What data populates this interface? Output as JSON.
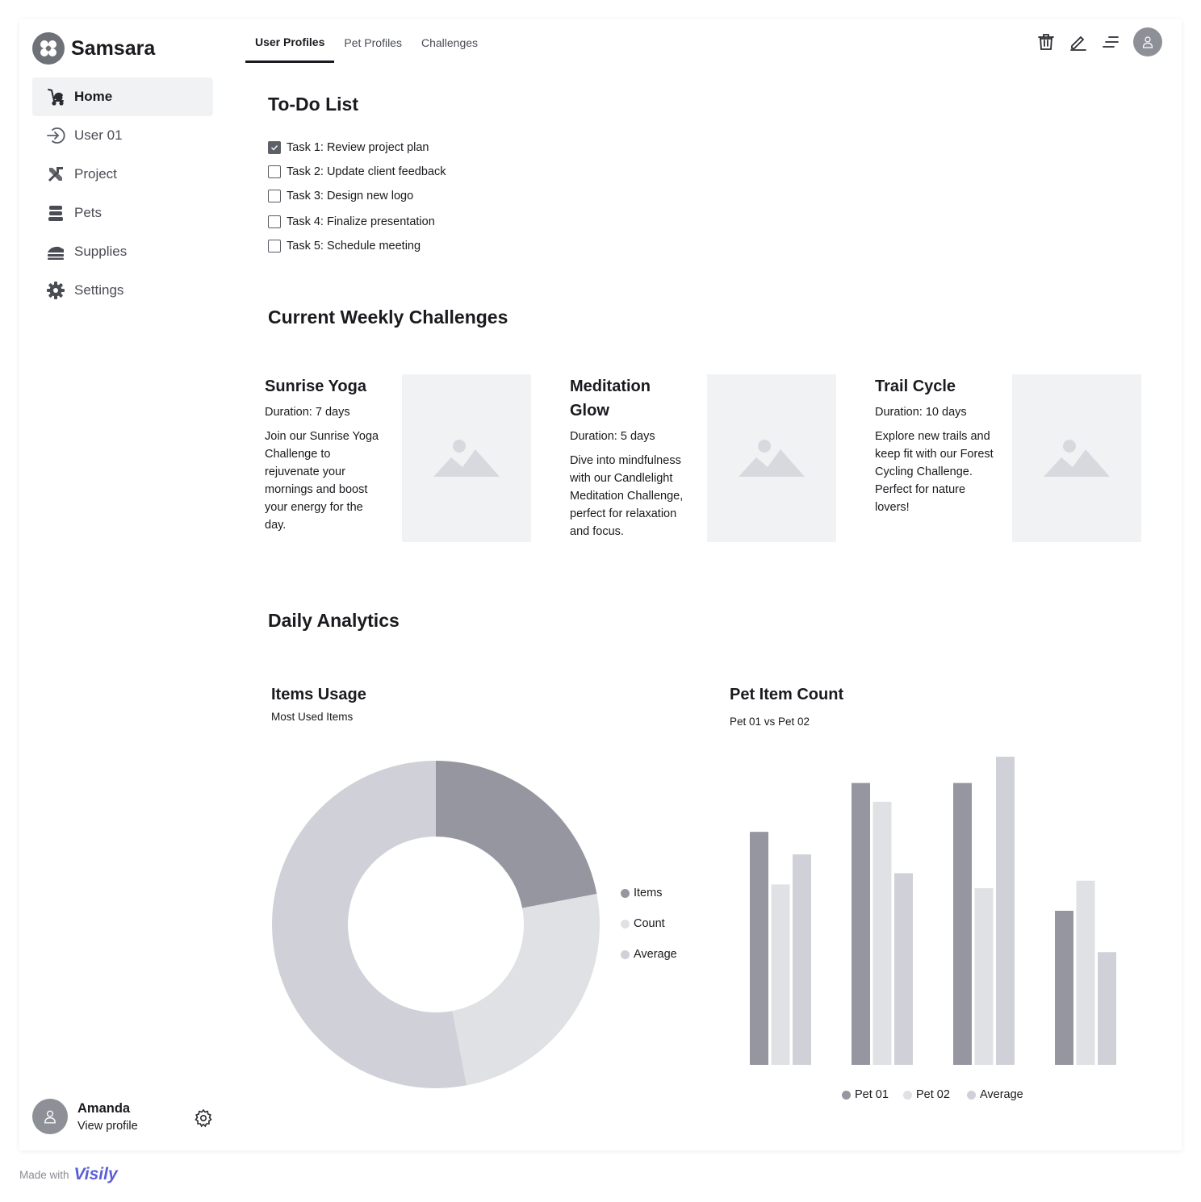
{
  "app": {
    "name": "Samsara"
  },
  "sidebar": {
    "items": [
      {
        "label": "Home",
        "icon": "stroller-icon",
        "active": true
      },
      {
        "label": "User 01",
        "icon": "sign-in-icon",
        "active": false
      },
      {
        "label": "Project",
        "icon": "tools-icon",
        "active": false
      },
      {
        "label": "Pets",
        "icon": "stack-icon",
        "active": false
      },
      {
        "label": "Supplies",
        "icon": "supplies-icon",
        "active": false
      },
      {
        "label": "Settings",
        "icon": "gear-icon",
        "active": false
      }
    ]
  },
  "tabs": [
    {
      "label": "User Profiles",
      "active": true
    },
    {
      "label": "Pet Profiles",
      "active": false
    },
    {
      "label": "Challenges",
      "active": false
    }
  ],
  "top_actions": [
    "trash-icon",
    "pencil-icon",
    "menu-icon",
    "avatar-icon"
  ],
  "todo": {
    "title": "To-Do List",
    "items": [
      {
        "label": "Task 1: Review project plan",
        "checked": true
      },
      {
        "label": "Task 2: Update client feedback",
        "checked": false
      },
      {
        "label": "Task 3: Design new logo",
        "checked": false
      },
      {
        "label": "Task 4: Finalize presentation",
        "checked": false
      },
      {
        "label": "Task 5: Schedule meeting",
        "checked": false
      }
    ]
  },
  "challenges": {
    "title": "Current Weekly Challenges",
    "items": [
      {
        "title": "Sunrise Yoga",
        "duration": "Duration: 7 days",
        "description": "Join our Sunrise Yoga Challenge to rejuvenate your mornings and boost your energy for the day."
      },
      {
        "title": "Meditation Glow",
        "duration": "Duration: 5 days",
        "description": "Dive into mindfulness with our Candlelight Meditation Challenge, perfect for relaxation and focus."
      },
      {
        "title": "Trail Cycle",
        "duration": "Duration: 10 days",
        "description": "Explore new trails and keep fit with our Forest Cycling Challenge. Perfect for nature lovers!"
      }
    ]
  },
  "analytics": {
    "title": "Daily Analytics",
    "items_usage": {
      "title": "Items Usage",
      "subtitle": "Most Used Items"
    },
    "pet_item_count": {
      "title": "Pet Item Count",
      "subtitle": "Pet 01 vs Pet 02"
    }
  },
  "colors": {
    "dark": "#9596a0",
    "light": "#e0e1e5",
    "mid": "#d0d1d8"
  },
  "chart_data": [
    {
      "type": "pie",
      "title": "Items Usage",
      "subtitle": "Most Used Items",
      "donut": true,
      "labels": [
        "Items",
        "Count",
        "Average"
      ],
      "values": [
        22,
        25,
        53
      ],
      "colors": [
        "#9596a0",
        "#e0e1e5",
        "#d0d1d8"
      ],
      "legend": "right"
    },
    {
      "type": "bar",
      "title": "Pet Item Count",
      "subtitle": "Pet 01 vs Pet 02",
      "categories": [
        "",
        "",
        "",
        ""
      ],
      "series": [
        {
          "name": "Pet 01",
          "values": [
            62,
            75,
            75,
            41
          ],
          "color": "#9596a0"
        },
        {
          "name": "Pet 02",
          "values": [
            48,
            70,
            47,
            49
          ],
          "color": "#e0e1e5"
        },
        {
          "name": "Average",
          "values": [
            56,
            51,
            82,
            30
          ],
          "color": "#d0d1d8"
        }
      ],
      "ylim": [
        0,
        82
      ],
      "legend": "bottom"
    }
  ],
  "profile": {
    "name": "Amanda",
    "link": "View profile"
  },
  "footer": {
    "made_with": "Made with",
    "brand": "Visily"
  }
}
